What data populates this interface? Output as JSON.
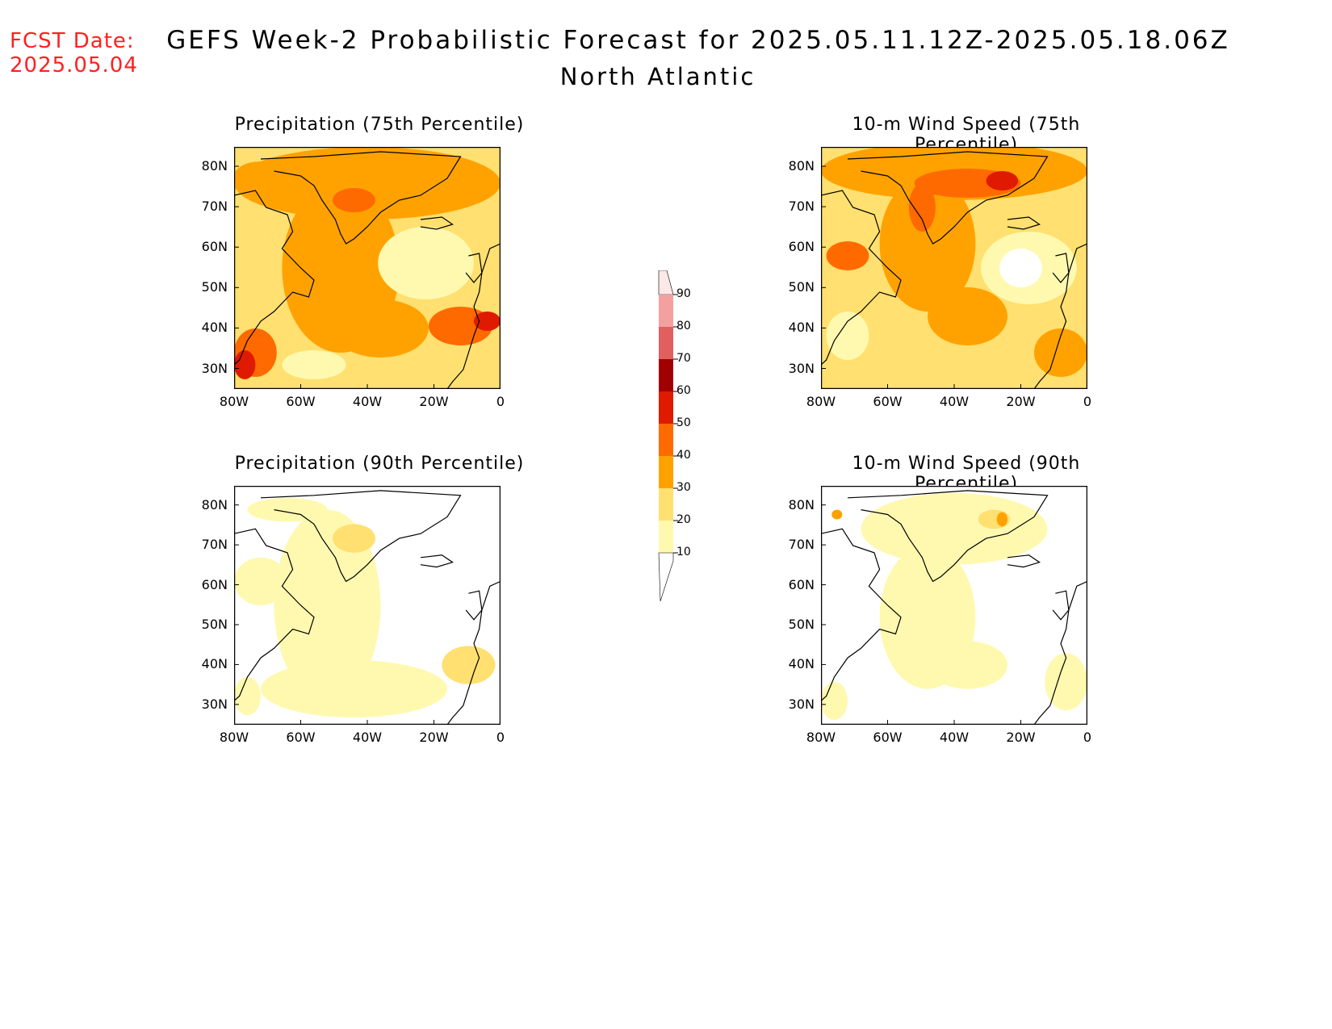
{
  "fcst_date_label": "FCST Date:",
  "fcst_date_value": "2025.05.04",
  "title": "GEFS Week-2 Probabilistic Forecast for 2025.05.11.12Z-2025.05.18.06Z",
  "subtitle": "North Atlantic",
  "axes": {
    "lat_labels": [
      "80N",
      "70N",
      "60N",
      "50N",
      "40N",
      "30N"
    ],
    "lon_labels": [
      "80W",
      "60W",
      "40W",
      "20W",
      "0"
    ]
  },
  "panels": [
    {
      "id": "precip75",
      "title": "Precipitation (75th Percentile)"
    },
    {
      "id": "wind75",
      "title": "10-m Wind Speed (75th Percentile)"
    },
    {
      "id": "precip90",
      "title": "Precipitation (90th Percentile)"
    },
    {
      "id": "wind90",
      "title": "10-m Wind Speed (90th Percentile)"
    }
  ],
  "colorbar": {
    "labels": [
      "90",
      "80",
      "70",
      "60",
      "50",
      "40",
      "30",
      "20",
      "10"
    ],
    "colors": [
      "#fde8e8",
      "#f4a0a0",
      "#e06060",
      "#a00000",
      "#e01a00",
      "#ff6a00",
      "#ffa200",
      "#ffe070",
      "#fff9b0"
    ]
  },
  "chart_data": [
    {
      "type": "heatmap",
      "title": "Precipitation (75th Percentile)",
      "x": "80W-0",
      "y": "25N-85N"
    },
    {
      "type": "heatmap",
      "title": "10-m Wind Speed (75th Percentile)",
      "x": "80W-0",
      "y": "25N-85N"
    },
    {
      "type": "heatmap",
      "title": "Precipitation (90th Percentile)",
      "x": "80W-0",
      "y": "25N-85N"
    },
    {
      "type": "heatmap",
      "title": "10-m Wind Speed (90th Percentile)",
      "x": "80W-0",
      "y": "25N-85N"
    }
  ]
}
